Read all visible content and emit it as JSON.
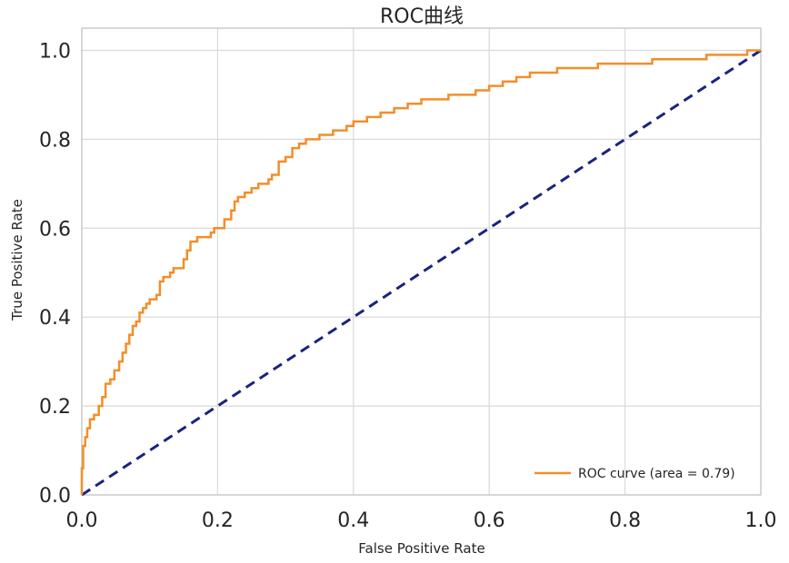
{
  "chart_data": {
    "type": "line",
    "title": "ROC曲线",
    "xlabel": "False Positive Rate",
    "ylabel": "True Positive Rate",
    "xlim": [
      0.0,
      1.0
    ],
    "ylim": [
      0.0,
      1.05
    ],
    "x_ticks": [
      "0.0",
      "0.2",
      "0.4",
      "0.6",
      "0.8",
      "1.0"
    ],
    "y_ticks": [
      "0.0",
      "0.2",
      "0.4",
      "0.6",
      "0.8",
      "1.0"
    ],
    "grid": true,
    "legend_position": "lower-right",
    "series": [
      {
        "name": "ROC curve (area = 0.79)",
        "style": "solid",
        "color": "#f28e2b",
        "x": [
          0.0,
          0.0,
          0.002,
          0.005,
          0.008,
          0.012,
          0.018,
          0.025,
          0.03,
          0.035,
          0.042,
          0.048,
          0.055,
          0.06,
          0.065,
          0.07,
          0.075,
          0.08,
          0.085,
          0.09,
          0.095,
          0.1,
          0.105,
          0.11,
          0.115,
          0.12,
          0.13,
          0.135,
          0.14,
          0.15,
          0.155,
          0.16,
          0.165,
          0.17,
          0.18,
          0.19,
          0.195,
          0.2,
          0.21,
          0.22,
          0.225,
          0.23,
          0.24,
          0.25,
          0.26,
          0.27,
          0.275,
          0.28,
          0.29,
          0.3,
          0.31,
          0.32,
          0.33,
          0.34,
          0.35,
          0.36,
          0.37,
          0.38,
          0.39,
          0.4,
          0.42,
          0.43,
          0.44,
          0.46,
          0.48,
          0.5,
          0.52,
          0.54,
          0.56,
          0.58,
          0.6,
          0.62,
          0.64,
          0.66,
          0.68,
          0.7,
          0.72,
          0.74,
          0.76,
          0.8,
          0.82,
          0.84,
          0.86,
          0.88,
          0.9,
          0.92,
          0.94,
          0.96,
          0.98,
          1.0
        ],
        "y": [
          0.0,
          0.06,
          0.11,
          0.13,
          0.15,
          0.17,
          0.18,
          0.2,
          0.22,
          0.25,
          0.26,
          0.28,
          0.3,
          0.32,
          0.34,
          0.36,
          0.38,
          0.39,
          0.41,
          0.42,
          0.43,
          0.44,
          0.44,
          0.45,
          0.48,
          0.49,
          0.5,
          0.51,
          0.51,
          0.53,
          0.55,
          0.57,
          0.57,
          0.58,
          0.58,
          0.59,
          0.6,
          0.6,
          0.62,
          0.64,
          0.66,
          0.67,
          0.68,
          0.69,
          0.7,
          0.7,
          0.71,
          0.72,
          0.75,
          0.76,
          0.78,
          0.79,
          0.8,
          0.8,
          0.81,
          0.81,
          0.82,
          0.82,
          0.83,
          0.84,
          0.85,
          0.85,
          0.86,
          0.87,
          0.88,
          0.89,
          0.89,
          0.9,
          0.9,
          0.91,
          0.92,
          0.93,
          0.94,
          0.95,
          0.95,
          0.96,
          0.96,
          0.96,
          0.97,
          0.97,
          0.97,
          0.98,
          0.98,
          0.98,
          0.98,
          0.99,
          0.99,
          0.99,
          1.0,
          1.0
        ]
      },
      {
        "name": "",
        "style": "dashed",
        "color": "#1a237e",
        "x": [
          0.0,
          1.0
        ],
        "y": [
          0.0,
          1.0
        ]
      }
    ]
  }
}
